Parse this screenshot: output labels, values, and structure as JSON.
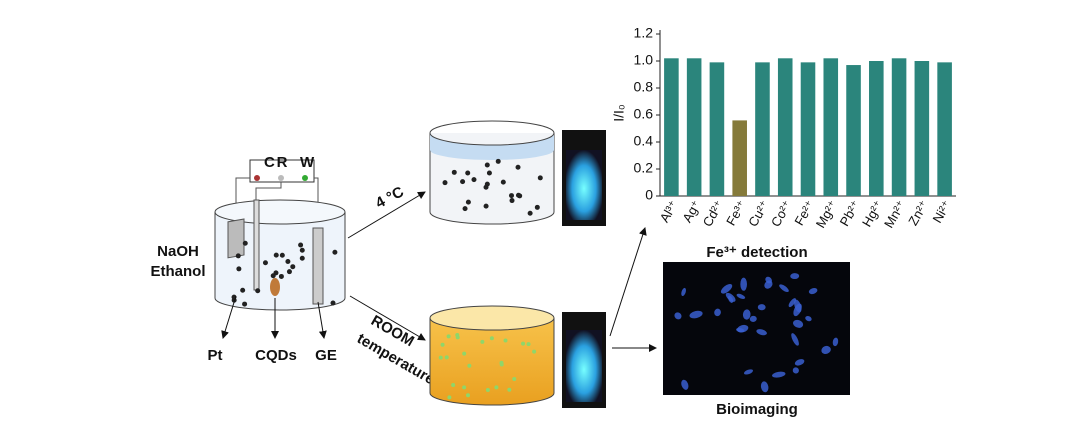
{
  "diagram": {
    "electrodes": [
      "C",
      "R",
      "W"
    ],
    "solution": [
      "NaOH",
      "Ethanol"
    ],
    "parts": [
      "Pt",
      "CQDs",
      "GE"
    ],
    "cold_condition": "4 °C",
    "room_condition": [
      "ROOM",
      "temperature"
    ],
    "detection_caption": "Fe³⁺ detection",
    "imaging_caption": "Bioimaging"
  },
  "chart_data": {
    "type": "bar",
    "y_label": "I/I₀",
    "categories": [
      "Al³⁺",
      "Ag⁺",
      "Cd²⁺",
      "Fe³⁺",
      "Cu²⁺",
      "Co²⁺",
      "Fe²⁺",
      "Mg²⁺",
      "Pb²⁺",
      "Hg²⁺",
      "Mn²⁺",
      "Zn²⁺",
      "Ni²⁺"
    ],
    "values": [
      1.02,
      1.02,
      0.99,
      0.56,
      0.99,
      1.02,
      0.99,
      1.02,
      0.97,
      1.0,
      1.02,
      1.0,
      0.99
    ],
    "colors": [
      "#2b857c",
      "#2b857c",
      "#2b857c",
      "#857a3a",
      "#2b857c",
      "#2b857c",
      "#2b857c",
      "#2b857c",
      "#2b857c",
      "#2b857c",
      "#2b857c",
      "#2b857c",
      "#2b857c"
    ],
    "ylim": [
      0,
      1.2
    ],
    "yticks": [
      0,
      0.2,
      0.4,
      0.6,
      0.8,
      {
        "value": 1,
        "label": "1.0"
      },
      1.2
    ]
  }
}
